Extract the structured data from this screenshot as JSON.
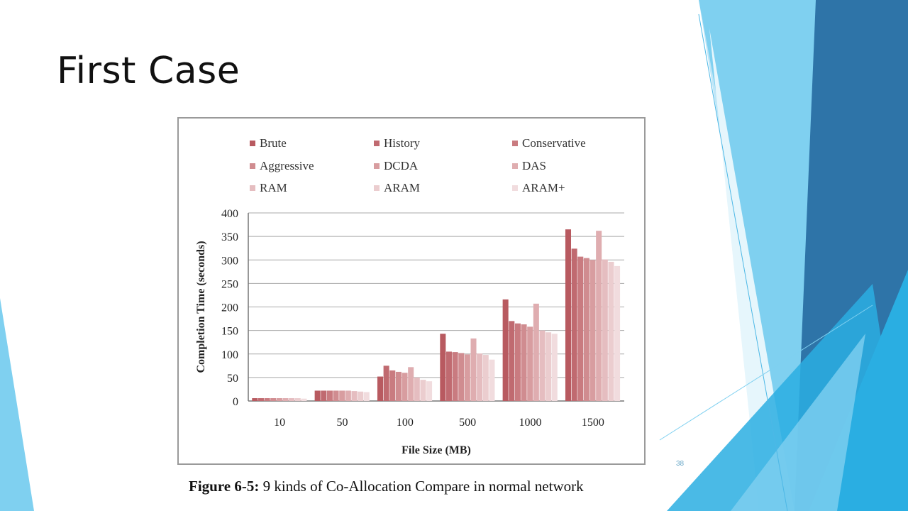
{
  "slide": {
    "title": "First Case",
    "page_number": "38"
  },
  "figure": {
    "caption_label": "Figure 6-5:",
    "caption_text": " 9 kinds of Co-Allocation Compare in normal network"
  },
  "colors": {
    "deco_light": "#bfe6f7",
    "deco_mid": "#7fd0f0",
    "deco_blue": "#2aaee2",
    "deco_dark": "#2e74a8"
  },
  "chart_data": {
    "type": "bar",
    "xlabel": "File Size (MB)",
    "ylabel": "Completion Time (seconds)",
    "ylim": [
      0,
      400
    ],
    "yticks": [
      0,
      50,
      100,
      150,
      200,
      250,
      300,
      350,
      400
    ],
    "grid": true,
    "legend_position": "top",
    "categories": [
      "10",
      "50",
      "100",
      "500",
      "1000",
      "1500"
    ],
    "series": [
      {
        "name": "Brute",
        "color": "#b85a60",
        "values": [
          6,
          22,
          52,
          143,
          216,
          365
        ]
      },
      {
        "name": "History",
        "color": "#c06a70",
        "values": [
          6,
          22,
          75,
          105,
          170,
          324
        ]
      },
      {
        "name": "Conservative",
        "color": "#c97b80",
        "values": [
          6,
          22,
          65,
          104,
          165,
          307
        ]
      },
      {
        "name": "Aggressive",
        "color": "#d08c90",
        "values": [
          6,
          22,
          62,
          102,
          163,
          304
        ]
      },
      {
        "name": "DCDA",
        "color": "#d89da0",
        "values": [
          6,
          22,
          60,
          99,
          158,
          300
        ]
      },
      {
        "name": "DAS",
        "color": "#dfadb0",
        "values": [
          6,
          22,
          72,
          133,
          207,
          362
        ]
      },
      {
        "name": "RAM",
        "color": "#e5bdc0",
        "values": [
          6,
          21,
          50,
          101,
          150,
          301
        ]
      },
      {
        "name": "ARAM",
        "color": "#ebcdcf",
        "values": [
          6,
          20,
          45,
          98,
          146,
          296
        ]
      },
      {
        "name": "ARAM+",
        "color": "#f1dcde",
        "values": [
          5,
          19,
          42,
          88,
          143,
          287
        ]
      }
    ]
  }
}
